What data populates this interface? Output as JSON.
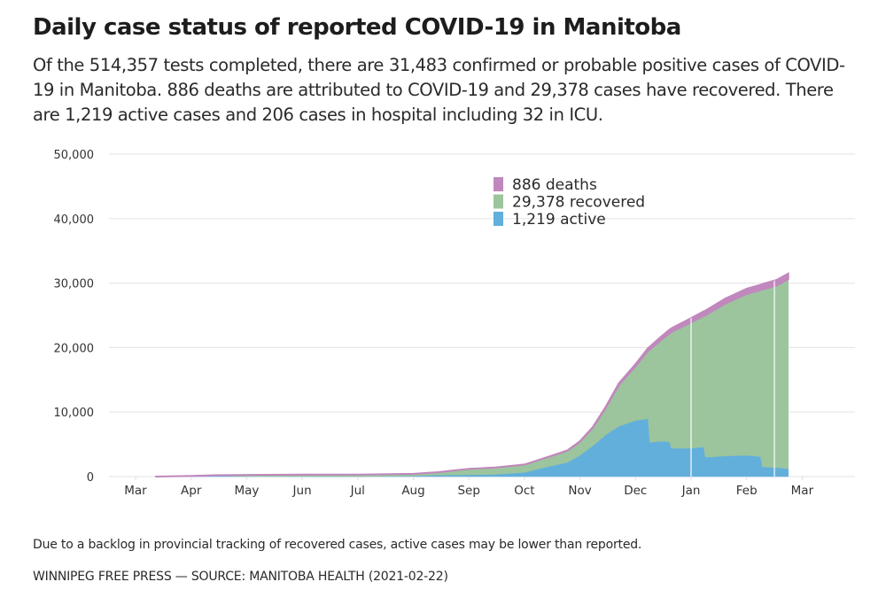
{
  "header": {
    "title": "Daily case status of reported COVID-19 in Manitoba",
    "subtitle": "Of the 514,357 tests completed, there are 31,483 confirmed or probable positive cases of COVID-19 in Manitoba. 886 deaths are attributed to COVID-19 and 29,378 cases have recovered. There are 1,219 active cases and 206 cases in hospital including 32 in ICU."
  },
  "footer": {
    "note": "Due to a backlog in provincial tracking of recovered cases, active cases may be lower than reported.",
    "source": "WINNIPEG FREE PRESS — SOURCE: MANITOBA HEALTH (2021-02-22)"
  },
  "colors": {
    "deaths": "#c088bd",
    "recovered": "#9cc59d",
    "active": "#62afdb",
    "grid": "#e9e6ea",
    "text": "#333333"
  },
  "chart_data": {
    "type": "area",
    "stacked": true,
    "title": "Daily case status of reported COVID-19 in Manitoba",
    "xlabel": "",
    "ylabel": "",
    "ylim": [
      0,
      50000
    ],
    "yticks": [
      0,
      10000,
      20000,
      30000,
      40000,
      50000
    ],
    "ytick_labels": [
      "0",
      "10,000",
      "20,000",
      "30,000",
      "40,000",
      "50,000"
    ],
    "xticks": [
      "Mar",
      "Apr",
      "May",
      "Jun",
      "Jul",
      "Aug",
      "Sep",
      "Oct",
      "Nov",
      "Dec",
      "Jan",
      "Feb",
      "Mar"
    ],
    "x_domain": [
      "2020-03-01",
      "2021-03-12"
    ],
    "grid": true,
    "legend_position": "top-center",
    "legend": [
      {
        "key": "deaths",
        "label": "886 deaths"
      },
      {
        "key": "recovered",
        "label": "29,378 recovered"
      },
      {
        "key": "active",
        "label": "1,219 active"
      }
    ],
    "reference_lines": [
      "2021-01-01",
      "2021-02-15"
    ],
    "series_order": [
      "active",
      "recovered",
      "deaths"
    ],
    "points": [
      {
        "date": "2020-03-12",
        "active": 3,
        "recovered": 0,
        "deaths": 0
      },
      {
        "date": "2020-04-01",
        "active": 100,
        "recovered": 5,
        "deaths": 1
      },
      {
        "date": "2020-04-15",
        "active": 120,
        "recovered": 90,
        "deaths": 4
      },
      {
        "date": "2020-05-01",
        "active": 40,
        "recovered": 220,
        "deaths": 7
      },
      {
        "date": "2020-06-01",
        "active": 10,
        "recovered": 280,
        "deaths": 7
      },
      {
        "date": "2020-07-01",
        "active": 15,
        "recovered": 300,
        "deaths": 7
      },
      {
        "date": "2020-08-01",
        "active": 90,
        "recovered": 330,
        "deaths": 8
      },
      {
        "date": "2020-08-15",
        "active": 250,
        "recovered": 420,
        "deaths": 10
      },
      {
        "date": "2020-09-01",
        "active": 290,
        "recovered": 900,
        "deaths": 15
      },
      {
        "date": "2020-09-15",
        "active": 350,
        "recovered": 1050,
        "deaths": 17
      },
      {
        "date": "2020-10-01",
        "active": 650,
        "recovered": 1200,
        "deaths": 20
      },
      {
        "date": "2020-10-15",
        "active": 1600,
        "recovered": 1500,
        "deaths": 35
      },
      {
        "date": "2020-10-25",
        "active": 2200,
        "recovered": 1800,
        "deaths": 60
      },
      {
        "date": "2020-11-01",
        "active": 3300,
        "recovered": 2100,
        "deaths": 80
      },
      {
        "date": "2020-11-08",
        "active": 4800,
        "recovered": 2800,
        "deaths": 110
      },
      {
        "date": "2020-11-15",
        "active": 6500,
        "recovered": 4200,
        "deaths": 180
      },
      {
        "date": "2020-11-22",
        "active": 7800,
        "recovered": 6400,
        "deaths": 260
      },
      {
        "date": "2020-12-01",
        "active": 8700,
        "recovered": 8400,
        "deaths": 350
      },
      {
        "date": "2020-12-08",
        "active": 9000,
        "recovered": 10500,
        "deaths": 450
      },
      {
        "date": "2020-12-09",
        "active": 5300,
        "recovered": 14400,
        "deaths": 460
      },
      {
        "date": "2020-12-15",
        "active": 5500,
        "recovered": 15600,
        "deaths": 530
      },
      {
        "date": "2020-12-20",
        "active": 5400,
        "recovered": 16800,
        "deaths": 590
      },
      {
        "date": "2020-12-21",
        "active": 4400,
        "recovered": 18000,
        "deaths": 600
      },
      {
        "date": "2021-01-01",
        "active": 4400,
        "recovered": 19500,
        "deaths": 680
      },
      {
        "date": "2021-01-08",
        "active": 4600,
        "recovered": 20300,
        "deaths": 730
      },
      {
        "date": "2021-01-09",
        "active": 3000,
        "recovered": 22000,
        "deaths": 740
      },
      {
        "date": "2021-01-20",
        "active": 3200,
        "recovered": 23600,
        "deaths": 800
      },
      {
        "date": "2021-02-01",
        "active": 3300,
        "recovered": 25000,
        "deaths": 840
      },
      {
        "date": "2021-02-08",
        "active": 3100,
        "recovered": 25800,
        "deaths": 855
      },
      {
        "date": "2021-02-09",
        "active": 1500,
        "recovered": 27500,
        "deaths": 860
      },
      {
        "date": "2021-02-16",
        "active": 1400,
        "recovered": 28200,
        "deaths": 875
      },
      {
        "date": "2021-02-22",
        "active": 1219,
        "recovered": 29378,
        "deaths": 886
      }
    ]
  }
}
